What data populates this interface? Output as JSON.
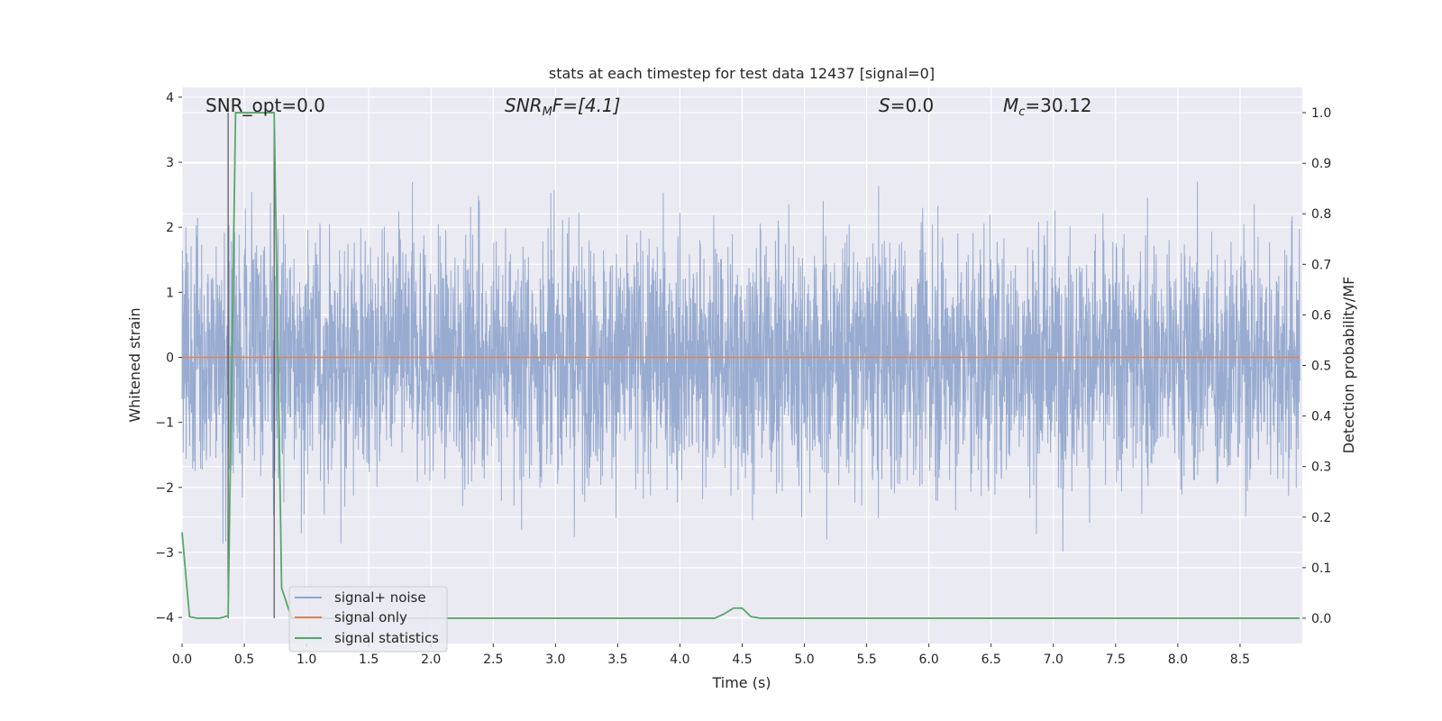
{
  "chart_data": {
    "type": "line",
    "title": "stats at each timestep for test data 12437 [signal=0]",
    "xlabel": "Time (s)",
    "ylabel": "Whitened strain",
    "y2label": "Detection probability/MF",
    "xlim": [
      0.0,
      9.0
    ],
    "ylim": [
      -4.4,
      4.15
    ],
    "y2lim": [
      -0.05,
      1.05
    ],
    "xticks": [
      0.0,
      0.5,
      1.0,
      1.5,
      2.0,
      2.5,
      3.0,
      3.5,
      4.0,
      4.5,
      5.0,
      5.5,
      6.0,
      6.5,
      7.0,
      7.5,
      8.0,
      8.5
    ],
    "xtick_labels": [
      "0.0",
      "0.5",
      "1.0",
      "1.5",
      "2.0",
      "2.5",
      "3.0",
      "3.5",
      "4.0",
      "4.5",
      "5.0",
      "5.5",
      "6.0",
      "6.5",
      "7.0",
      "7.5",
      "8.0",
      "8.5"
    ],
    "yticks": [
      -4,
      -3,
      -2,
      -1,
      0,
      1,
      2,
      3,
      4
    ],
    "ytick_labels": [
      "−4",
      "−3",
      "−2",
      "−1",
      "0",
      "1",
      "2",
      "3",
      "4"
    ],
    "y2ticks": [
      0.0,
      0.1,
      0.2,
      0.3,
      0.4,
      0.5,
      0.6,
      0.7,
      0.8,
      0.9,
      1.0
    ],
    "y2tick_labels": [
      "0.0",
      "0.1",
      "0.2",
      "0.3",
      "0.4",
      "0.5",
      "0.6",
      "0.7",
      "0.8",
      "0.9",
      "1.0"
    ],
    "grid": true,
    "legend_position": "lower-left",
    "annotations": {
      "snr_opt": "SNR_opt=0.0",
      "snr_mf_main": "SNR",
      "snr_mf_sub": "M",
      "snr_mf_rest": "F=[4.1]",
      "s_main": "S",
      "s_rest": "=0.0",
      "mc_main": "M",
      "mc_sub": "c",
      "mc_rest": "=30.12"
    },
    "markers_x": [
      0.37,
      0.74
    ],
    "series": [
      {
        "name": "signal+ noise",
        "color": "#8fa4cc",
        "axis": "left",
        "kind": "noise",
        "samples": 4096,
        "peak_high": 3.8,
        "peak_low": -4.05,
        "typical_amplitude": 1.5,
        "x_end": 8.98
      },
      {
        "name": "signal only",
        "color": "#dd8452",
        "axis": "left",
        "x": [
          0.0,
          8.98
        ],
        "y": [
          0.0,
          0.0
        ]
      },
      {
        "name": "signal statistics",
        "color": "#55a868",
        "axis": "right",
        "x": [
          0.0,
          0.06,
          0.12,
          0.3,
          0.37,
          0.43,
          0.5,
          0.55,
          0.74,
          0.8,
          0.88,
          1.0,
          2.0,
          3.0,
          4.0,
          4.28,
          4.35,
          4.43,
          4.5,
          4.57,
          4.65,
          5.0,
          6.0,
          7.0,
          8.0,
          8.98
        ],
        "y": [
          0.17,
          0.003,
          0.0,
          0.0,
          0.005,
          1.0,
          1.0,
          1.0,
          1.0,
          0.06,
          0.0,
          0.0,
          0.0,
          0.0,
          0.0,
          0.0,
          0.008,
          0.02,
          0.02,
          0.003,
          0.0,
          0.0,
          0.0,
          0.0,
          0.0,
          0.0
        ]
      }
    ]
  }
}
